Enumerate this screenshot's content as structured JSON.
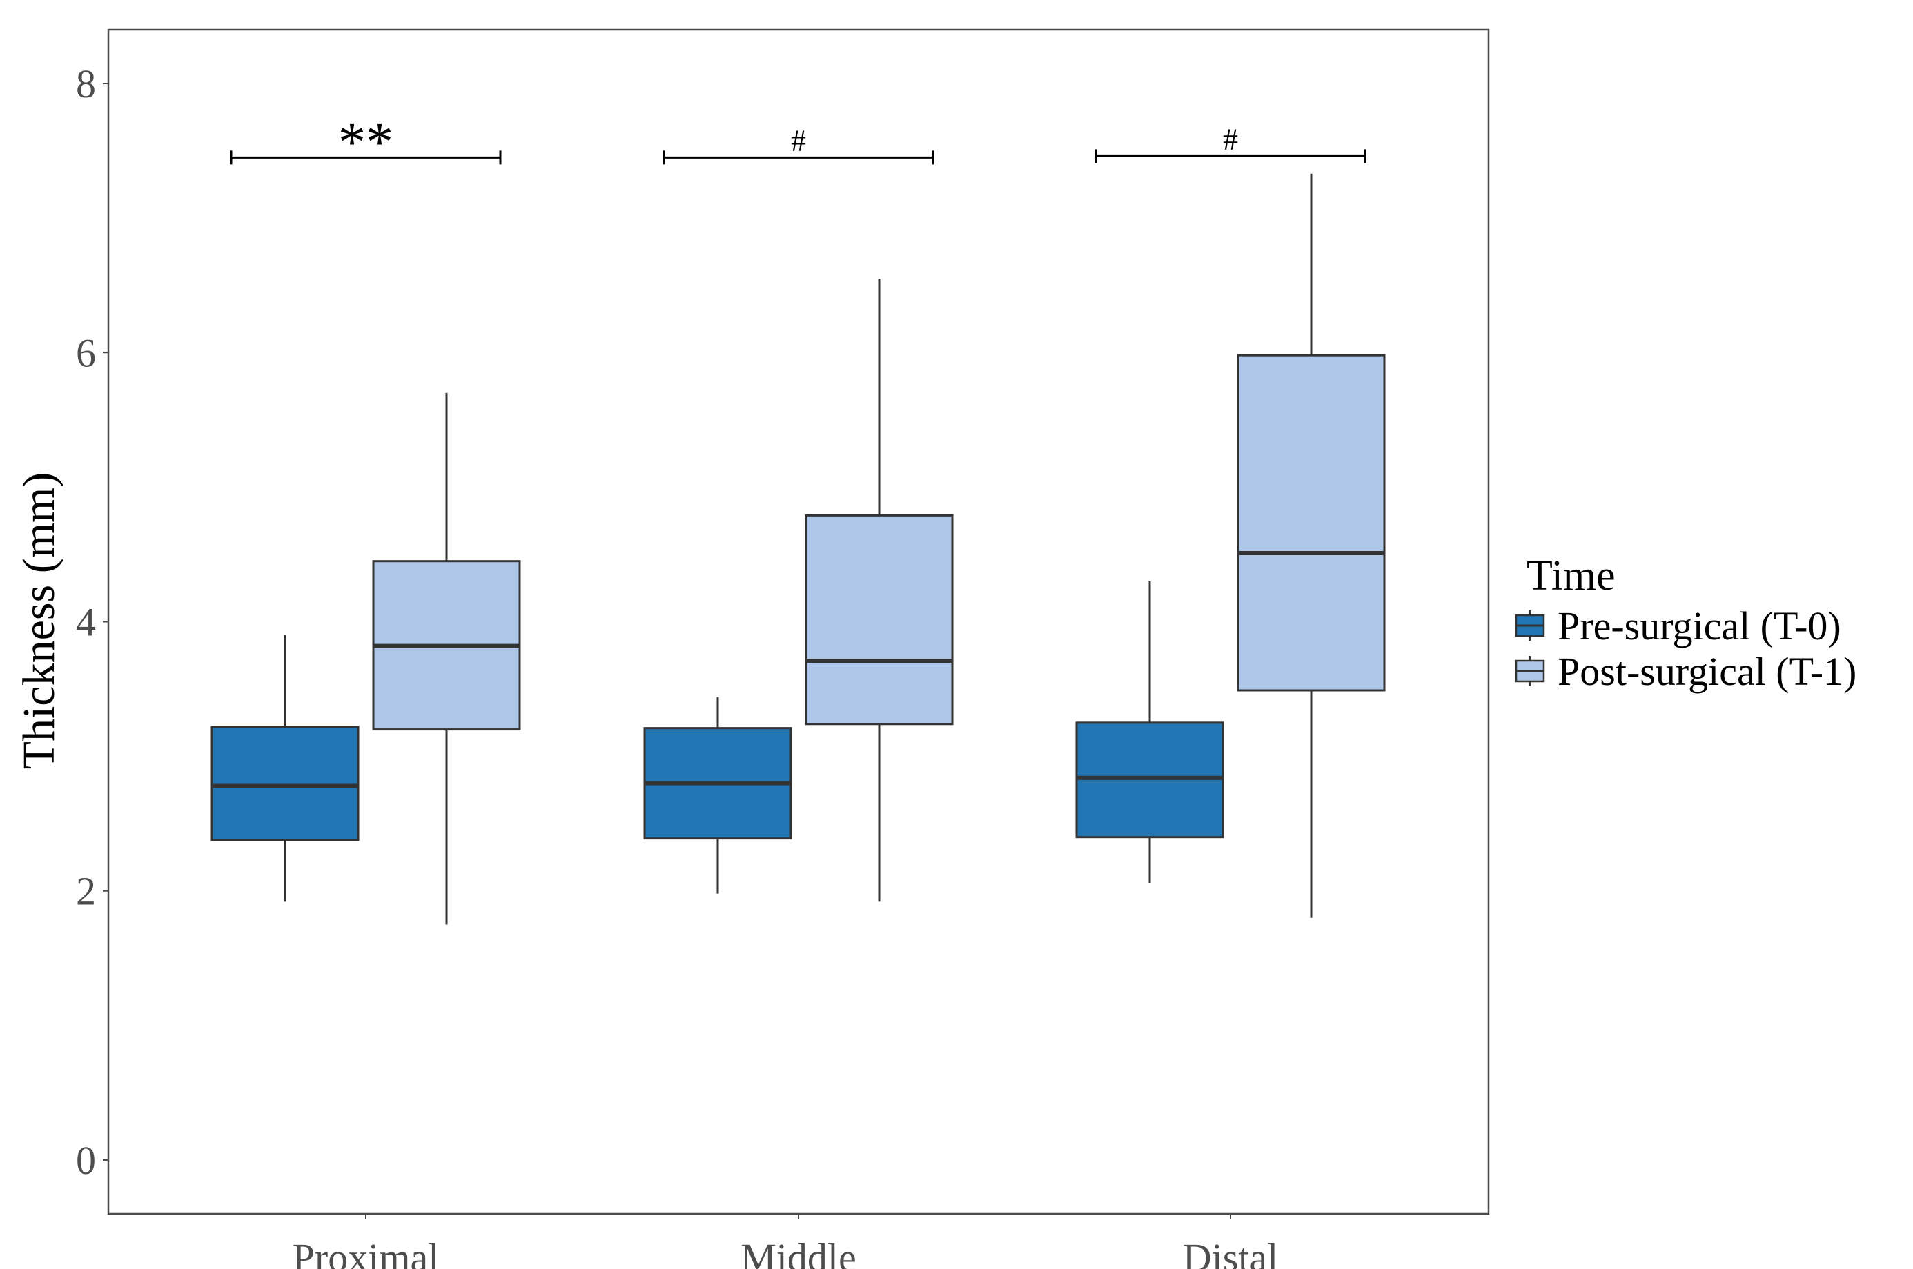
{
  "chart_data": {
    "type": "box",
    "title": "",
    "xlabel": "",
    "ylabel": "Thickness (mm)",
    "ylim": [
      -0.4,
      8.4
    ],
    "yticks": [
      0,
      2,
      4,
      6,
      8
    ],
    "grid": false,
    "categories": [
      "Proximal",
      "Middle",
      "Distal"
    ],
    "legend": {
      "title": "Time",
      "position": "right"
    },
    "series": [
      {
        "name": "Pre-surgical (T-0)",
        "color": "#2276b4",
        "boxes": [
          {
            "min": 1.92,
            "q1": 2.38,
            "median": 2.78,
            "q3": 3.22,
            "max": 3.9
          },
          {
            "min": 1.98,
            "q1": 2.39,
            "median": 2.8,
            "q3": 3.21,
            "max": 3.44
          },
          {
            "min": 2.06,
            "q1": 2.4,
            "median": 2.84,
            "q3": 3.25,
            "max": 4.3
          }
        ]
      },
      {
        "name": "Post-surgical (T-1)",
        "color": "#aec7e8",
        "boxes": [
          {
            "min": 1.75,
            "q1": 3.2,
            "median": 3.82,
            "q3": 4.45,
            "max": 5.7
          },
          {
            "min": 1.92,
            "q1": 3.24,
            "median": 3.71,
            "q3": 4.79,
            "max": 6.55
          },
          {
            "min": 1.8,
            "q1": 3.49,
            "median": 4.51,
            "q3": 5.98,
            "max": 7.33
          }
        ]
      }
    ],
    "annotations": [
      {
        "category": "Proximal",
        "label": "**",
        "y": 7.45
      },
      {
        "category": "Middle",
        "label": "#",
        "y": 7.45
      },
      {
        "category": "Distal",
        "label": "#",
        "y": 7.46
      }
    ]
  }
}
